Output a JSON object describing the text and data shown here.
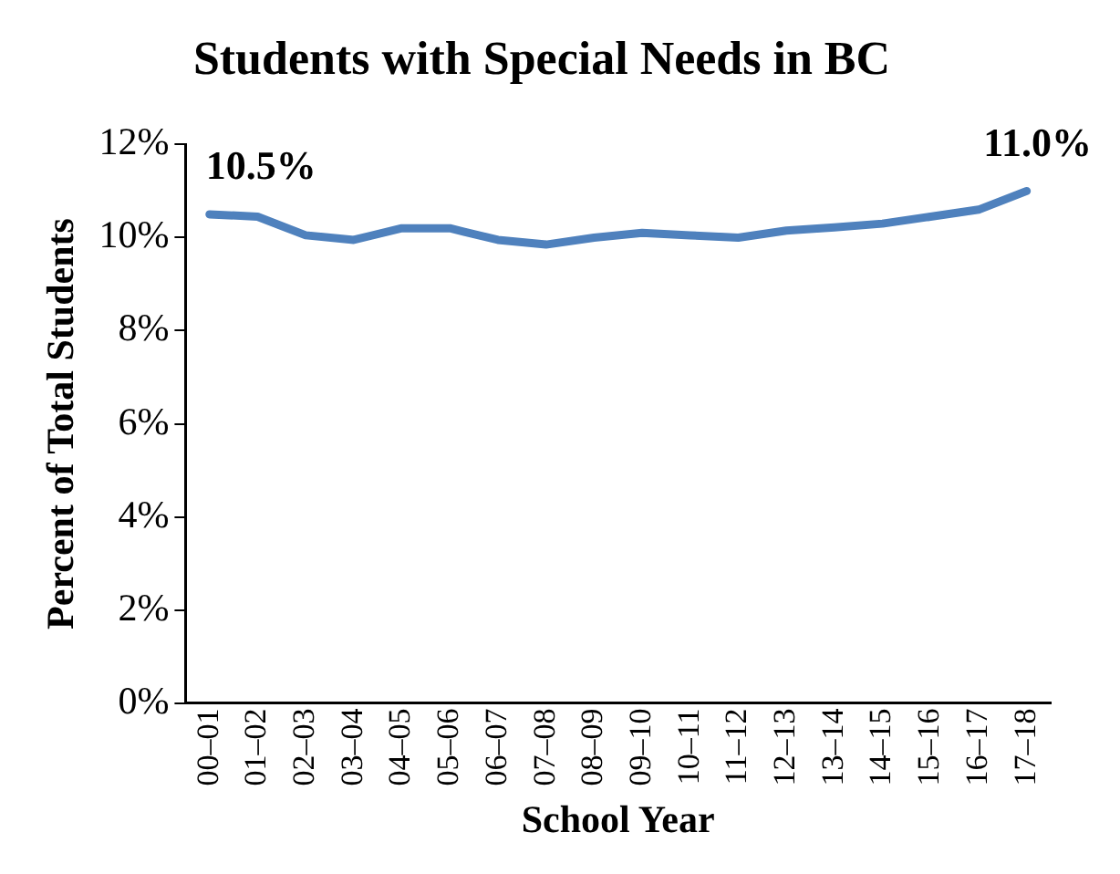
{
  "chart_data": {
    "type": "line",
    "title": "Students with Special Needs in BC",
    "xlabel": "School Year",
    "ylabel": "Percent of Total Students",
    "categories": [
      "00–01",
      "01–02",
      "02–03",
      "03–04",
      "04–05",
      "05–06",
      "06–07",
      "07–08",
      "08–09",
      "09–10",
      "10–11",
      "11–12",
      "12–13",
      "13–14",
      "14–15",
      "15–16",
      "16–17",
      "17–18"
    ],
    "series": [
      {
        "color": "#4f81bd",
        "values": [
          10.5,
          10.45,
          10.05,
          9.95,
          10.2,
          10.2,
          9.95,
          9.85,
          10.0,
          10.1,
          10.05,
          10.0,
          10.15,
          10.22,
          10.3,
          10.45,
          10.6,
          11.0
        ]
      }
    ],
    "ylim": [
      0,
      12
    ],
    "yticks": [
      {
        "value": 0,
        "label": "0%"
      },
      {
        "value": 2,
        "label": "2%"
      },
      {
        "value": 4,
        "label": "4%"
      },
      {
        "value": 6,
        "label": "6%"
      },
      {
        "value": 8,
        "label": "8%"
      },
      {
        "value": 10,
        "label": "10%"
      },
      {
        "value": 12,
        "label": "12%"
      }
    ],
    "annotations": [
      {
        "text": "10.5%",
        "x": "00–01",
        "y": 10.5
      },
      {
        "text": "11.0%",
        "x": "17–18",
        "y": 11.0
      }
    ],
    "grid": false,
    "legend": false,
    "marker": "none",
    "line_style": "solid"
  }
}
